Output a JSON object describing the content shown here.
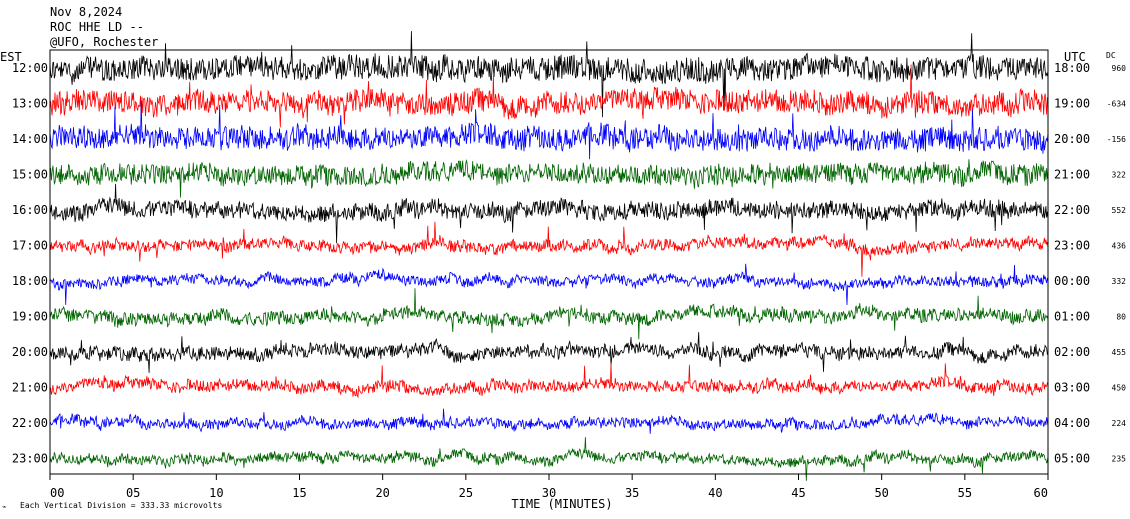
{
  "header": {
    "date": "Nov 8,2024",
    "station": "ROC HHE LD --",
    "location": "@UFO, Rochester"
  },
  "left_axis_label": "EST",
  "right_axis_label": "UTC",
  "dc_label": "DC",
  "x_axis_label": "TIME (MINUTES)",
  "footer_note": "Each Vertical Division = 333.33 microvolts",
  "colors": {
    "cycle": [
      "#000000",
      "#ff0000",
      "#0000ff",
      "#006400"
    ],
    "background": "#ffffff",
    "frame": "#000000"
  },
  "chart_data": {
    "type": "line",
    "title": "",
    "xlabel": "TIME (MINUTES)",
    "ylabel": "",
    "xlim": [
      0,
      60
    ],
    "x_ticks": [
      "00",
      "05",
      "10",
      "15",
      "20",
      "25",
      "30",
      "35",
      "40",
      "45",
      "50",
      "55",
      "60"
    ],
    "grid": false,
    "series": [
      {
        "est": "12:00",
        "utc": "18:00",
        "dc": "960",
        "color": "#000000",
        "noise": 1.7
      },
      {
        "est": "13:00",
        "utc": "19:00",
        "dc": "-634",
        "color": "#ff0000",
        "noise": 1.6
      },
      {
        "est": "14:00",
        "utc": "20:00",
        "dc": "-156",
        "color": "#0000ff",
        "noise": 1.6
      },
      {
        "est": "15:00",
        "utc": "21:00",
        "dc": "322",
        "color": "#006400",
        "noise": 1.4
      },
      {
        "est": "16:00",
        "utc": "22:00",
        "dc": "552",
        "color": "#000000",
        "noise": 1.2
      },
      {
        "est": "17:00",
        "utc": "23:00",
        "dc": "436",
        "color": "#ff0000",
        "noise": 0.8
      },
      {
        "est": "18:00",
        "utc": "00:00",
        "dc": "332",
        "color": "#0000ff",
        "noise": 0.7
      },
      {
        "est": "19:00",
        "utc": "01:00",
        "dc": "80",
        "color": "#006400",
        "noise": 0.9
      },
      {
        "est": "20:00",
        "utc": "02:00",
        "dc": "455",
        "color": "#000000",
        "noise": 0.9
      },
      {
        "est": "21:00",
        "utc": "03:00",
        "dc": "450",
        "color": "#ff0000",
        "noise": 0.8
      },
      {
        "est": "22:00",
        "utc": "04:00",
        "dc": "224",
        "color": "#0000ff",
        "noise": 0.7
      },
      {
        "est": "23:00",
        "utc": "05:00",
        "dc": "235",
        "color": "#006400",
        "noise": 0.7
      }
    ]
  }
}
